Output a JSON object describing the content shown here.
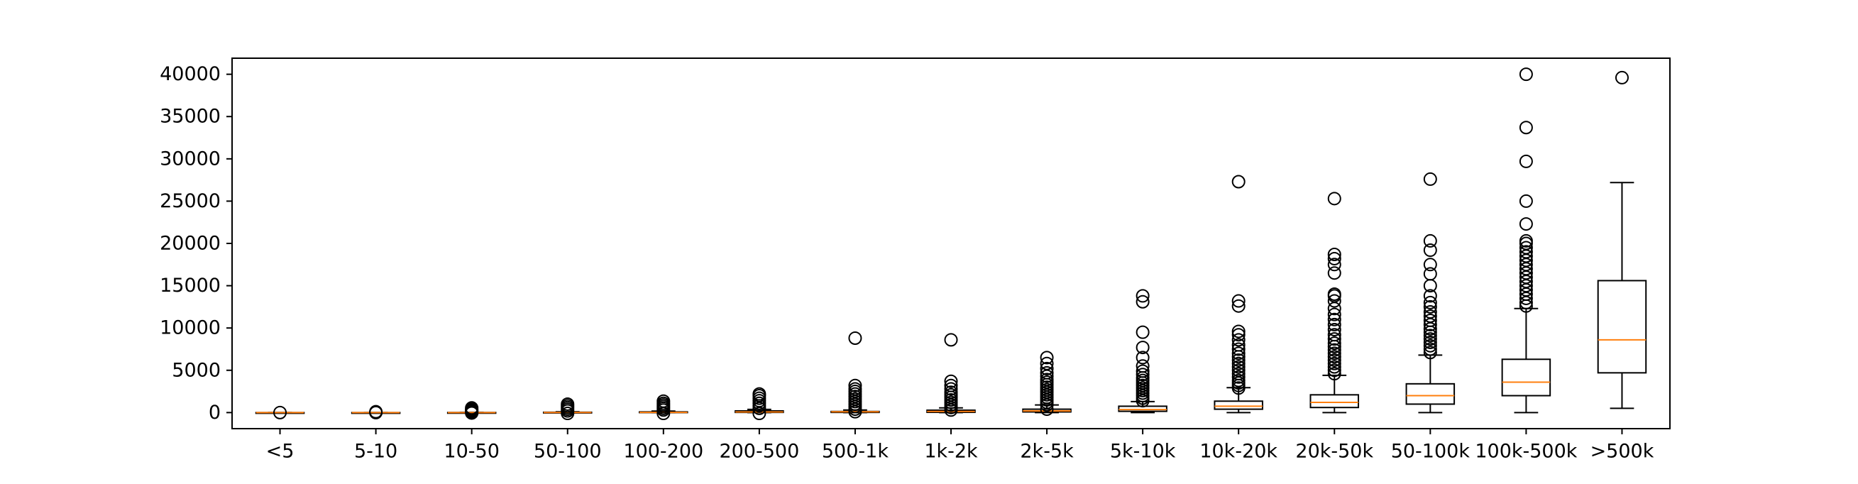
{
  "chart_data": {
    "type": "box",
    "title": "",
    "xlabel": "",
    "ylabel": "",
    "ylim": [
      -1900,
      41900
    ],
    "yticks": [
      0,
      5000,
      10000,
      15000,
      20000,
      25000,
      30000,
      35000,
      40000
    ],
    "grid": false,
    "colors": {
      "box": "#000000",
      "median": "#ff7f0e",
      "background": "#ffffff"
    },
    "categories": [
      "<5",
      "5-10",
      "10-50",
      "50-100",
      "100-200",
      "200-500",
      "500-1k",
      "1k-2k",
      "2k-5k",
      "5k-10k",
      "10k-20k",
      "20k-50k",
      "50-100k",
      "100k-500k",
      ">500k"
    ],
    "boxes": [
      {
        "whisker_low": 0,
        "q1": 0,
        "median": 0,
        "q3": 0,
        "whisker_high": 0,
        "outliers": [
          0
        ]
      },
      {
        "whisker_low": 0,
        "q1": 0,
        "median": 0,
        "q3": 0,
        "whisker_high": 0,
        "outliers": [
          0,
          100
        ]
      },
      {
        "whisker_low": 0,
        "q1": 0,
        "median": 0,
        "q3": 10,
        "whisker_high": 30,
        "outliers": [
          -50,
          100,
          200,
          300,
          400,
          550
        ]
      },
      {
        "whisker_low": 0,
        "q1": 0,
        "median": 10,
        "q3": 40,
        "whisker_high": 90,
        "outliers": [
          -100,
          200,
          400,
          600,
          800,
          1000
        ]
      },
      {
        "whisker_low": 0,
        "q1": 0,
        "median": 20,
        "q3": 80,
        "whisker_high": 180,
        "outliers": [
          -100,
          300,
          500,
          700,
          900,
          1100,
          1350
        ]
      },
      {
        "whisker_low": 0,
        "q1": 20,
        "median": 70,
        "q3": 200,
        "whisker_high": 380,
        "outliers": [
          -100,
          500,
          800,
          1100,
          1400,
          1700,
          2000,
          2200
        ]
      },
      {
        "whisker_low": 0,
        "q1": 20,
        "median": 90,
        "q3": 130,
        "whisker_high": 300,
        "outliers": [
          100,
          400,
          700,
          1000,
          1300,
          1600,
          1900,
          2200,
          2500,
          2800,
          3200,
          8800
        ]
      },
      {
        "whisker_low": 0,
        "q1": 30,
        "median": 130,
        "q3": 280,
        "whisker_high": 550,
        "outliers": [
          300,
          600,
          900,
          1200,
          1500,
          1800,
          2100,
          2400,
          2800,
          3200,
          3700,
          8600
        ]
      },
      {
        "whisker_low": 0,
        "q1": 80,
        "median": 200,
        "q3": 400,
        "whisker_high": 900,
        "outliers": [
          400,
          900,
          1200,
          1500,
          1800,
          2100,
          2400,
          2700,
          3000,
          3300,
          3600,
          3900,
          4300,
          4700,
          5200,
          5800,
          6500
        ]
      },
      {
        "whisker_low": 0,
        "q1": 150,
        "median": 350,
        "q3": 750,
        "whisker_high": 1300,
        "outliers": [
          1400,
          1700,
          2000,
          2300,
          2600,
          2900,
          3200,
          3500,
          3800,
          4100,
          4500,
          4900,
          5500,
          6500,
          7700,
          9500,
          13100,
          13800
        ]
      },
      {
        "whisker_low": 0,
        "q1": 400,
        "median": 750,
        "q3": 1350,
        "whisker_high": 2950,
        "outliers": [
          2900,
          3200,
          3500,
          3800,
          4200,
          4600,
          5000,
          5400,
          5800,
          6200,
          6600,
          7000,
          7500,
          8000,
          8600,
          9200,
          9600,
          12600,
          13200,
          27300
        ]
      },
      {
        "whisker_low": 0,
        "q1": 600,
        "median": 1200,
        "q3": 2100,
        "whisker_high": 4400,
        "outliers": [
          4600,
          5000,
          5400,
          5800,
          6200,
          6600,
          7000,
          7400,
          7800,
          8200,
          8700,
          9200,
          9800,
          10400,
          11000,
          11600,
          12300,
          13200,
          13800,
          14000,
          16500,
          17500,
          18200,
          18700,
          25300
        ]
      },
      {
        "whisker_low": 0,
        "q1": 1000,
        "median": 2000,
        "q3": 3400,
        "whisker_high": 6800,
        "outliers": [
          7100,
          7500,
          7900,
          8300,
          8700,
          9100,
          9500,
          9900,
          10400,
          10900,
          11400,
          11900,
          12500,
          13000,
          13800,
          15000,
          16400,
          17500,
          19200,
          20300,
          27600
        ]
      },
      {
        "whisker_low": 0,
        "q1": 2000,
        "median": 3600,
        "q3": 6300,
        "whisker_high": 12300,
        "outliers": [
          12600,
          13000,
          13500,
          14000,
          14500,
          15000,
          15500,
          16000,
          16500,
          17000,
          17500,
          18000,
          18500,
          19000,
          19500,
          20000,
          20300,
          22300,
          25000,
          29700,
          33700,
          40000
        ]
      },
      {
        "whisker_low": 500,
        "q1": 4700,
        "median": 8600,
        "q3": 15600,
        "whisker_high": 27200,
        "outliers": [
          39600
        ]
      }
    ]
  }
}
